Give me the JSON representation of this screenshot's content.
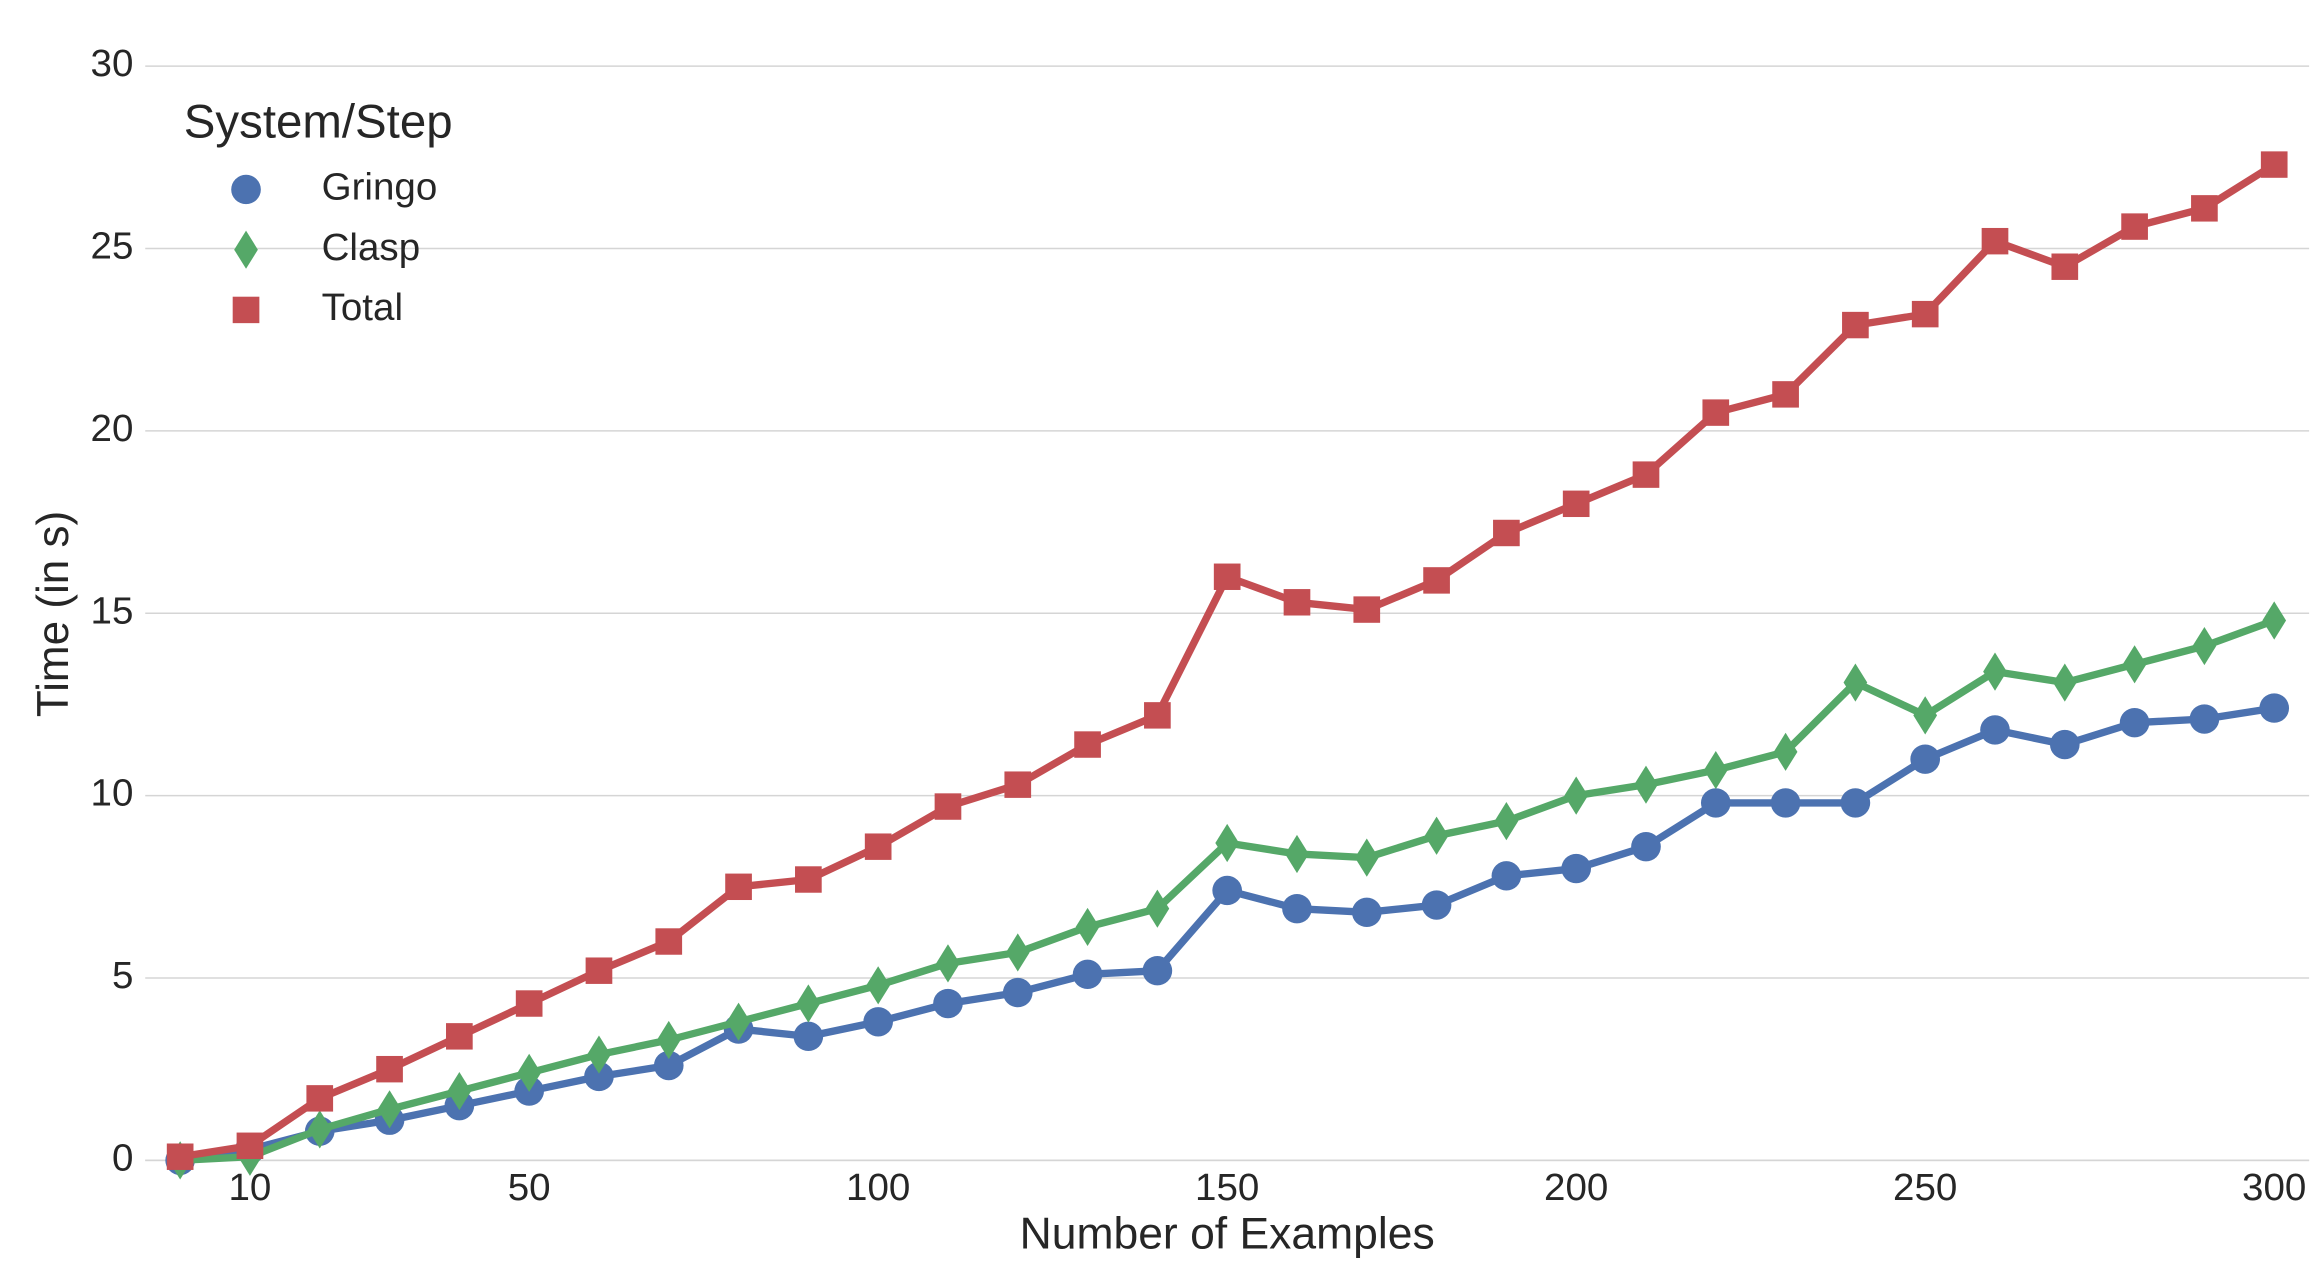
{
  "chart_data": {
    "type": "line",
    "xlabel": "Number of Examples",
    "ylabel": "Time (in s)",
    "legend_title": "System/Step",
    "legend": "upper left",
    "grid": true,
    "x": [
      0,
      10,
      20,
      30,
      40,
      50,
      60,
      70,
      80,
      90,
      100,
      110,
      120,
      130,
      140,
      150,
      160,
      170,
      180,
      190,
      200,
      210,
      220,
      230,
      240,
      250,
      260,
      270,
      280,
      290,
      300
    ],
    "xlim": [
      -5,
      305
    ],
    "xticks": [
      10,
      50,
      100,
      150,
      200,
      250,
      300
    ],
    "ylim": [
      0,
      30
    ],
    "yticks": [
      0,
      5,
      10,
      15,
      20,
      25,
      30
    ],
    "series": [
      {
        "name": "Gringo",
        "color": "#4c72b0",
        "marker": "circle",
        "values": [
          0,
          0.3,
          0.8,
          1.1,
          1.5,
          1.9,
          2.3,
          2.6,
          3.6,
          3.4,
          3.8,
          4.3,
          4.6,
          5.1,
          5.2,
          7.4,
          6.9,
          6.8,
          7.0,
          7.8,
          8.0,
          8.6,
          9.8,
          9.8,
          9.8,
          11.0,
          11.8,
          11.4,
          12.0,
          12.1,
          12.4
        ]
      },
      {
        "name": "Clasp",
        "color": "#55a868",
        "marker": "diamond",
        "values": [
          0,
          0.1,
          0.85,
          1.4,
          1.9,
          2.4,
          2.9,
          3.3,
          3.8,
          4.3,
          4.8,
          5.4,
          5.7,
          6.4,
          6.9,
          8.7,
          8.4,
          8.3,
          8.9,
          9.3,
          10.0,
          10.3,
          10.7,
          11.2,
          13.1,
          12.2,
          13.4,
          13.1,
          13.6,
          14.1,
          14.8
        ]
      },
      {
        "name": "Total",
        "color": "#c44e52",
        "marker": "square",
        "values": [
          0.1,
          0.4,
          1.7,
          2.5,
          3.4,
          4.3,
          5.2,
          6.0,
          7.5,
          7.7,
          8.6,
          9.7,
          10.3,
          11.4,
          12.2,
          16.0,
          15.3,
          15.1,
          15.9,
          17.2,
          18.0,
          18.8,
          20.5,
          21.0,
          22.9,
          23.2,
          25.2,
          24.5,
          25.6,
          26.1,
          27.3
        ]
      }
    ]
  }
}
